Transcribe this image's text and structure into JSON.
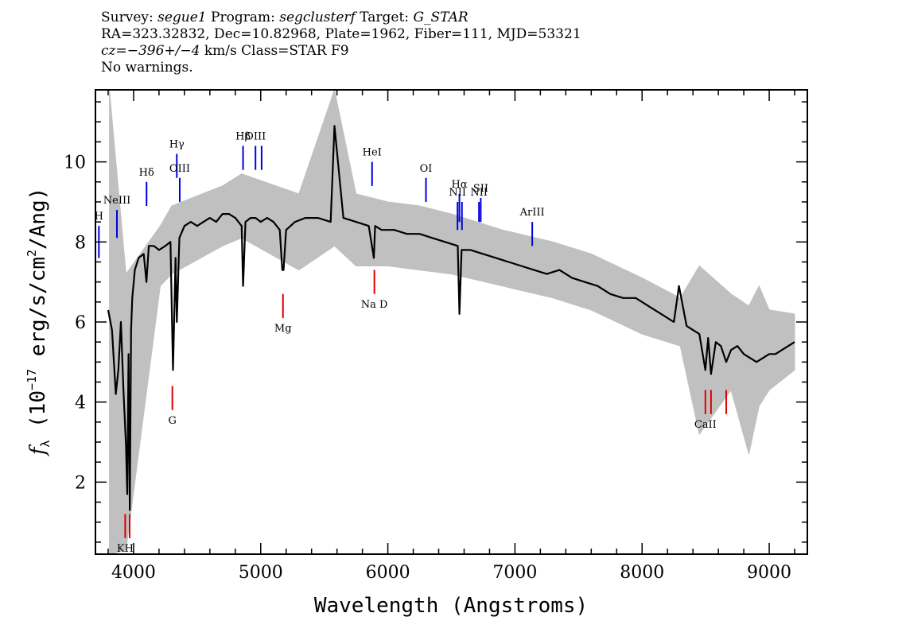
{
  "header": {
    "l1": {
      "survey_key": "Survey:",
      "survey": "segue1",
      "program_key": "Program:",
      "program": "segclusterf",
      "target_key": "Target:",
      "target": "G_STAR"
    },
    "l2": "RA=323.32832, Dec=10.82968, Plate=1962, Fiber=111, MJD=53321",
    "l3": {
      "cz": "cz=−396+/−4",
      "rest": " km/s Class=STAR F9"
    },
    "l4": "No warnings."
  },
  "chart_data": {
    "type": "line",
    "xlabel": "Wavelength (Angstroms)",
    "ylabel": "fλ (10⁻¹⁷ erg/s/cm²/Ang)",
    "xlim": [
      3700,
      9300
    ],
    "ylim": [
      0.2,
      11.8
    ],
    "x_ticks": [
      4000,
      5000,
      6000,
      7000,
      8000,
      9000
    ],
    "y_ticks": [
      2,
      4,
      6,
      8,
      10
    ],
    "colors": {
      "flux": "#000000",
      "error": "#c0c0c0",
      "emission": "#0000dd",
      "absorption": "#dd0000"
    },
    "series": [
      {
        "name": "flux",
        "color": "#000000",
        "x": [
          3800,
          3830,
          3860,
          3880,
          3900,
          3920,
          3940,
          3950,
          3960,
          3970,
          3980,
          3990,
          4010,
          4040,
          4080,
          4101,
          4120,
          4160,
          4200,
          4250,
          4290,
          4310,
          4330,
          4340,
          4360,
          4400,
          4450,
          4500,
          4550,
          4600,
          4650,
          4700,
          4750,
          4800,
          4850,
          4861,
          4880,
          4920,
          4960,
          5000,
          5050,
          5100,
          5150,
          5170,
          5180,
          5200,
          5270,
          5350,
          5450,
          5550,
          5580,
          5650,
          5750,
          5850,
          5890,
          5900,
          5950,
          6050,
          6150,
          6250,
          6350,
          6450,
          6550,
          6563,
          6580,
          6650,
          6750,
          6850,
          6950,
          7050,
          7150,
          7250,
          7350,
          7450,
          7550,
          7650,
          7750,
          7850,
          7950,
          8050,
          8150,
          8250,
          8290,
          8350,
          8400,
          8450,
          8498,
          8520,
          8542,
          8580,
          8620,
          8662,
          8700,
          8750,
          8800,
          8850,
          8900,
          8950,
          9000,
          9050,
          9100,
          9150,
          9200
        ],
        "y": [
          6.3,
          5.8,
          4.2,
          4.8,
          6.0,
          4.3,
          2.9,
          1.7,
          5.2,
          1.3,
          5.8,
          6.6,
          7.3,
          7.6,
          7.7,
          7.0,
          7.9,
          7.9,
          7.8,
          7.9,
          8.0,
          4.8,
          7.6,
          6.0,
          8.1,
          8.4,
          8.5,
          8.4,
          8.5,
          8.6,
          8.5,
          8.7,
          8.7,
          8.6,
          8.4,
          6.9,
          8.5,
          8.6,
          8.6,
          8.5,
          8.6,
          8.5,
          8.3,
          7.3,
          7.3,
          8.3,
          8.5,
          8.6,
          8.6,
          8.5,
          10.9,
          8.6,
          8.5,
          8.4,
          7.6,
          8.4,
          8.3,
          8.3,
          8.2,
          8.2,
          8.1,
          8.0,
          7.9,
          6.2,
          7.8,
          7.8,
          7.7,
          7.6,
          7.5,
          7.4,
          7.3,
          7.2,
          7.3,
          7.1,
          7.0,
          6.9,
          6.7,
          6.6,
          6.6,
          6.4,
          6.2,
          6.0,
          6.9,
          5.9,
          5.8,
          5.7,
          4.8,
          5.6,
          4.7,
          5.5,
          5.4,
          5.0,
          5.3,
          5.4,
          5.2,
          5.1,
          5.0,
          5.1,
          5.2,
          5.2,
          5.3,
          5.4,
          5.5
        ]
      },
      {
        "name": "error",
        "color": "#c0c0c0",
        "x": [
          3810,
          3940,
          4210,
          4300,
          4700,
          4850,
          5300,
          5580,
          5750,
          6000,
          6250,
          6500,
          6900,
          7300,
          7600,
          8000,
          8300,
          8450,
          8700,
          8840,
          8920,
          9000,
          9200
        ],
        "y_hi": [
          11.8,
          7.2,
          8.4,
          8.9,
          9.4,
          9.7,
          9.2,
          11.8,
          9.2,
          9.0,
          8.9,
          8.7,
          8.3,
          8.0,
          7.7,
          7.1,
          6.6,
          7.4,
          6.7,
          6.4,
          6.9,
          6.3,
          6.2
        ],
        "y_lo": [
          0.2,
          0.3,
          6.9,
          7.2,
          7.9,
          8.1,
          7.3,
          7.9,
          7.4,
          7.4,
          7.3,
          7.2,
          6.9,
          6.6,
          6.3,
          5.7,
          5.4,
          3.2,
          4.3,
          2.7,
          3.9,
          4.3,
          4.8
        ]
      }
    ],
    "emission_lines": [
      {
        "label": "H",
        "x": 3727,
        "y_top": 8.4,
        "y_bot": 7.6
      },
      {
        "label": "NeIII",
        "x": 3869,
        "y_top": 8.8,
        "y_bot": 8.1
      },
      {
        "label": "Hδ",
        "x": 4102,
        "y_top": 9.5,
        "y_bot": 8.9
      },
      {
        "label": "Hγ",
        "x": 4340,
        "y_top": 10.2,
        "y_bot": 9.6
      },
      {
        "label": "OIII",
        "x": 4363,
        "y_top": 9.6,
        "y_bot": 9.0
      },
      {
        "label": "Hβ",
        "x": 4861,
        "y_top": 10.4,
        "y_bot": 9.8
      },
      {
        "label": "OIII",
        "x": 4959,
        "y_top": 10.4,
        "y_bot": 9.8
      },
      {
        "label": "",
        "x": 5007,
        "y_top": 10.4,
        "y_bot": 9.8
      },
      {
        "label": "HeI",
        "x": 5876,
        "y_top": 10.0,
        "y_bot": 9.4
      },
      {
        "label": "OI",
        "x": 6300,
        "y_top": 9.6,
        "y_bot": 9.0
      },
      {
        "label": "NII",
        "x": 6548,
        "y_top": 9.0,
        "y_bot": 8.3
      },
      {
        "label": "Hα",
        "x": 6563,
        "y_top": 9.2,
        "y_bot": 8.5
      },
      {
        "label": "",
        "x": 6583,
        "y_top": 9.0,
        "y_bot": 8.3
      },
      {
        "label": "NII",
        "x": 6717,
        "y_top": 9.0,
        "y_bot": 8.5
      },
      {
        "label": "SII",
        "x": 6731,
        "y_top": 9.1,
        "y_bot": 8.5
      },
      {
        "label": "ArIII",
        "x": 7136,
        "y_top": 8.5,
        "y_bot": 7.9
      }
    ],
    "absorption_lines": [
      {
        "label": "KH",
        "x": 3934,
        "y_top": 1.2,
        "y_bot": 0.6
      },
      {
        "label": "",
        "x": 3969,
        "y_top": 1.2,
        "y_bot": 0.6
      },
      {
        "label": "G",
        "x": 4305,
        "y_top": 4.4,
        "y_bot": 3.8
      },
      {
        "label": "Mg",
        "x": 5175,
        "y_top": 6.7,
        "y_bot": 6.1
      },
      {
        "label": "Na D",
        "x": 5894,
        "y_top": 7.3,
        "y_bot": 6.7
      },
      {
        "label": "CaII",
        "x": 8498,
        "y_top": 4.3,
        "y_bot": 3.7
      },
      {
        "label": "",
        "x": 8542,
        "y_top": 4.3,
        "y_bot": 3.7
      },
      {
        "label": "",
        "x": 8662,
        "y_top": 4.3,
        "y_bot": 3.7
      }
    ]
  }
}
